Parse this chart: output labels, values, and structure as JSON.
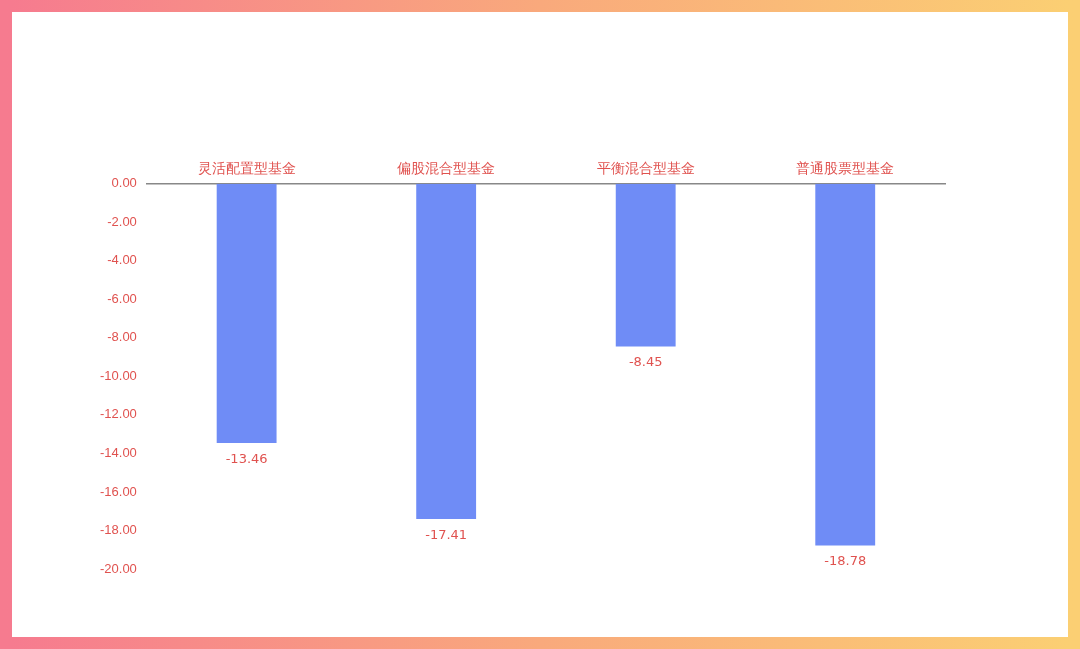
{
  "chart_data": {
    "type": "bar",
    "categories": [
      "灵活配置型基金",
      "偏股混合型基金",
      "平衡混合型基金",
      "普通股票型基金"
    ],
    "values": [
      -13.46,
      -17.41,
      -8.45,
      -18.78
    ],
    "color": "#6f8cf6",
    "ylim": [
      -20,
      0
    ],
    "yticks": [
      {
        "value": 0,
        "label": "0.00"
      },
      {
        "value": -2,
        "label": "-2.00"
      },
      {
        "value": -4,
        "label": "-4.00"
      },
      {
        "value": -6,
        "label": "-6.00"
      },
      {
        "value": -8,
        "label": "-8.00"
      },
      {
        "value": -10,
        "label": "-10.00"
      },
      {
        "value": -12,
        "label": "-12.00"
      },
      {
        "value": -14,
        "label": "-14.00"
      },
      {
        "value": -16,
        "label": "-16.00"
      },
      {
        "value": -18,
        "label": "-18.00"
      },
      {
        "value": -20,
        "label": "-20.00"
      }
    ],
    "data_labels": true,
    "grid": false,
    "legend": false
  }
}
